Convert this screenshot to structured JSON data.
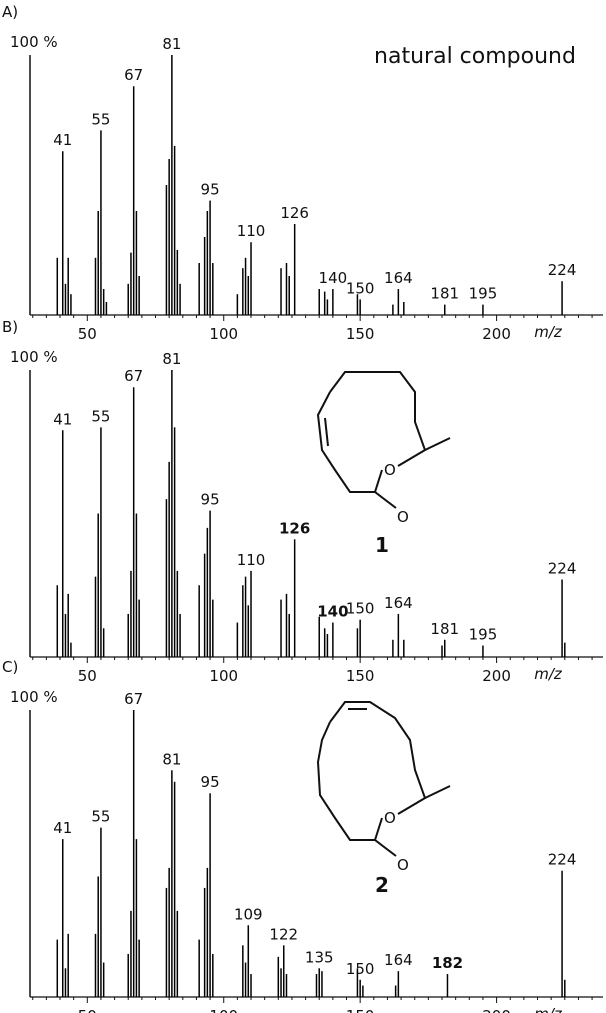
{
  "chart_data": [
    {
      "type": "bar",
      "panel": "A)",
      "annotation": "natural compound",
      "ylabel": "100 %",
      "xlabel": "m/z",
      "color": "#000000",
      "xlim": [
        29,
        239
      ],
      "ylim": [
        0,
        100
      ],
      "xticks": [
        50,
        100,
        150,
        200
      ],
      "xminorticks": [
        30,
        35,
        40,
        45,
        55,
        60,
        65,
        70,
        75,
        80,
        85,
        90,
        95,
        105,
        110,
        115,
        120,
        125,
        130,
        135,
        140,
        145,
        155,
        160,
        165,
        170,
        175,
        180,
        185,
        190,
        195,
        205,
        210,
        215,
        220,
        225,
        230,
        235
      ],
      "labeled_x": [
        41,
        55,
        67,
        81,
        95,
        110,
        126,
        140,
        150,
        164,
        181,
        195,
        224
      ],
      "labeled_values": [
        63,
        71,
        88,
        100,
        44,
        28,
        35,
        10,
        6,
        10,
        4,
        4,
        13
      ],
      "label_colors": [
        "#000000",
        "#000000",
        "#000000",
        "#000000",
        "#000000",
        "#000000",
        "#000000",
        "#000000",
        "#000000",
        "#000000",
        "#000000",
        "#000000",
        "#000000"
      ],
      "x": [
        39,
        42,
        43,
        44,
        53,
        54,
        56,
        57,
        65,
        66,
        68,
        69,
        79,
        80,
        82,
        83,
        84,
        91,
        93,
        94,
        96,
        105,
        107,
        108,
        109,
        121,
        123,
        124,
        135,
        137,
        138,
        149,
        162,
        166
      ],
      "values": [
        22,
        12,
        22,
        8,
        22,
        40,
        10,
        5,
        12,
        24,
        40,
        15,
        50,
        60,
        65,
        25,
        12,
        20,
        30,
        40,
        20,
        8,
        18,
        22,
        15,
        18,
        20,
        15,
        10,
        9,
        6,
        8,
        4,
        5
      ]
    },
    {
      "type": "bar",
      "panel": "B)",
      "ylabel": "100 %",
      "xlabel": "m/z",
      "color": "#000000",
      "compound_label": "1",
      "xlim": [
        29,
        239
      ],
      "ylim": [
        0,
        100
      ],
      "xticks": [
        50,
        100,
        150,
        200
      ],
      "xminorticks": [
        30,
        35,
        40,
        45,
        55,
        60,
        65,
        70,
        75,
        80,
        85,
        90,
        95,
        105,
        110,
        115,
        120,
        125,
        130,
        135,
        140,
        145,
        155,
        160,
        165,
        170,
        175,
        180,
        185,
        190,
        195,
        205,
        210,
        215,
        220,
        225,
        230,
        235
      ],
      "labeled_x": [
        41,
        55,
        67,
        81,
        95,
        110,
        126,
        140,
        150,
        164,
        181,
        195,
        224
      ],
      "labeled_values": [
        79,
        80,
        94,
        100,
        51,
        30,
        41,
        12,
        13,
        15,
        6,
        4,
        27
      ],
      "label_colors": [
        "#000000",
        "#000000",
        "#000000",
        "#000000",
        "#000000",
        "#000000",
        "#e0212b",
        "#e0212b",
        "#000000",
        "#000000",
        "#000000",
        "#000000",
        "#000000"
      ],
      "x": [
        39,
        42,
        43,
        44,
        53,
        54,
        56,
        65,
        66,
        68,
        69,
        79,
        80,
        82,
        83,
        84,
        91,
        93,
        94,
        96,
        105,
        107,
        108,
        109,
        121,
        123,
        124,
        135,
        137,
        138,
        149,
        162,
        166,
        180,
        225
      ],
      "values": [
        25,
        15,
        22,
        5,
        28,
        50,
        10,
        15,
        30,
        50,
        20,
        55,
        68,
        80,
        30,
        15,
        25,
        36,
        45,
        20,
        12,
        25,
        28,
        18,
        20,
        22,
        15,
        14,
        10,
        8,
        10,
        6,
        6,
        4,
        5
      ]
    },
    {
      "type": "bar",
      "panel": "C)",
      "ylabel": "100 %",
      "xlabel": "m/z",
      "color": "#000000",
      "compound_label": "2",
      "xlim": [
        29,
        239
      ],
      "ylim": [
        0,
        100
      ],
      "xticks": [
        50,
        100,
        150,
        200
      ],
      "xminorticks": [
        30,
        35,
        40,
        45,
        55,
        60,
        65,
        70,
        75,
        80,
        85,
        90,
        95,
        105,
        110,
        115,
        120,
        125,
        130,
        135,
        140,
        145,
        155,
        160,
        165,
        170,
        175,
        180,
        185,
        190,
        195,
        205,
        210,
        215,
        220,
        225,
        230,
        235
      ],
      "labeled_x": [
        41,
        55,
        67,
        81,
        95,
        109,
        122,
        135,
        150,
        164,
        182,
        224
      ],
      "labeled_values": [
        55,
        59,
        100,
        79,
        71,
        25,
        18,
        10,
        6,
        9,
        8,
        44
      ],
      "label_colors": [
        "#000000",
        "#000000",
        "#000000",
        "#000000",
        "#000000",
        "#000000",
        "#000000",
        "#000000",
        "#000000",
        "#000000",
        "#e0212b",
        "#000000"
      ],
      "x": [
        39,
        42,
        43,
        53,
        54,
        56,
        65,
        66,
        68,
        69,
        79,
        80,
        82,
        83,
        91,
        93,
        94,
        96,
        107,
        108,
        110,
        120,
        121,
        123,
        134,
        136,
        149,
        151,
        163,
        225
      ],
      "values": [
        20,
        10,
        22,
        22,
        42,
        12,
        15,
        30,
        55,
        20,
        38,
        45,
        75,
        30,
        20,
        38,
        45,
        15,
        18,
        12,
        8,
        14,
        10,
        8,
        8,
        9,
        10,
        4,
        4,
        6
      ]
    }
  ]
}
